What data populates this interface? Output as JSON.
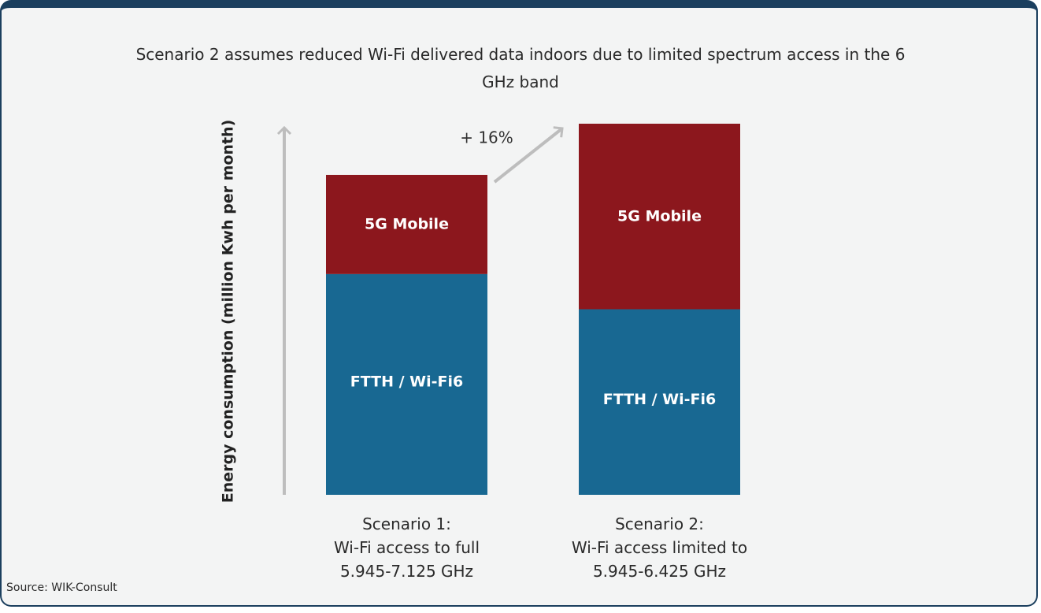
{
  "chart_data": {
    "type": "stacked_bar",
    "title": "Scenario 2 assumes reduced Wi-Fi delivered data indoors due to limited spectrum access in the 6 GHz band",
    "y_label": "Energy consumption (million Kwh per month)",
    "categories": [
      "Scenario 1:\nWi-Fi access to full\n5.945-7.125 GHz",
      "Scenario 2:\nWi-Fi access limited to\n5.945-6.425 GHz"
    ],
    "series": [
      {
        "name": "FTTH / Wi-Fi6",
        "color": "#186892",
        "values": [
          69,
          58
        ]
      },
      {
        "name": "5G Mobile",
        "color": "#8c171d",
        "values": [
          31,
          58
        ]
      }
    ],
    "ylim": [
      0,
      116
    ],
    "annotation": "+ 16%",
    "source": "Source: WIK-Consult"
  }
}
